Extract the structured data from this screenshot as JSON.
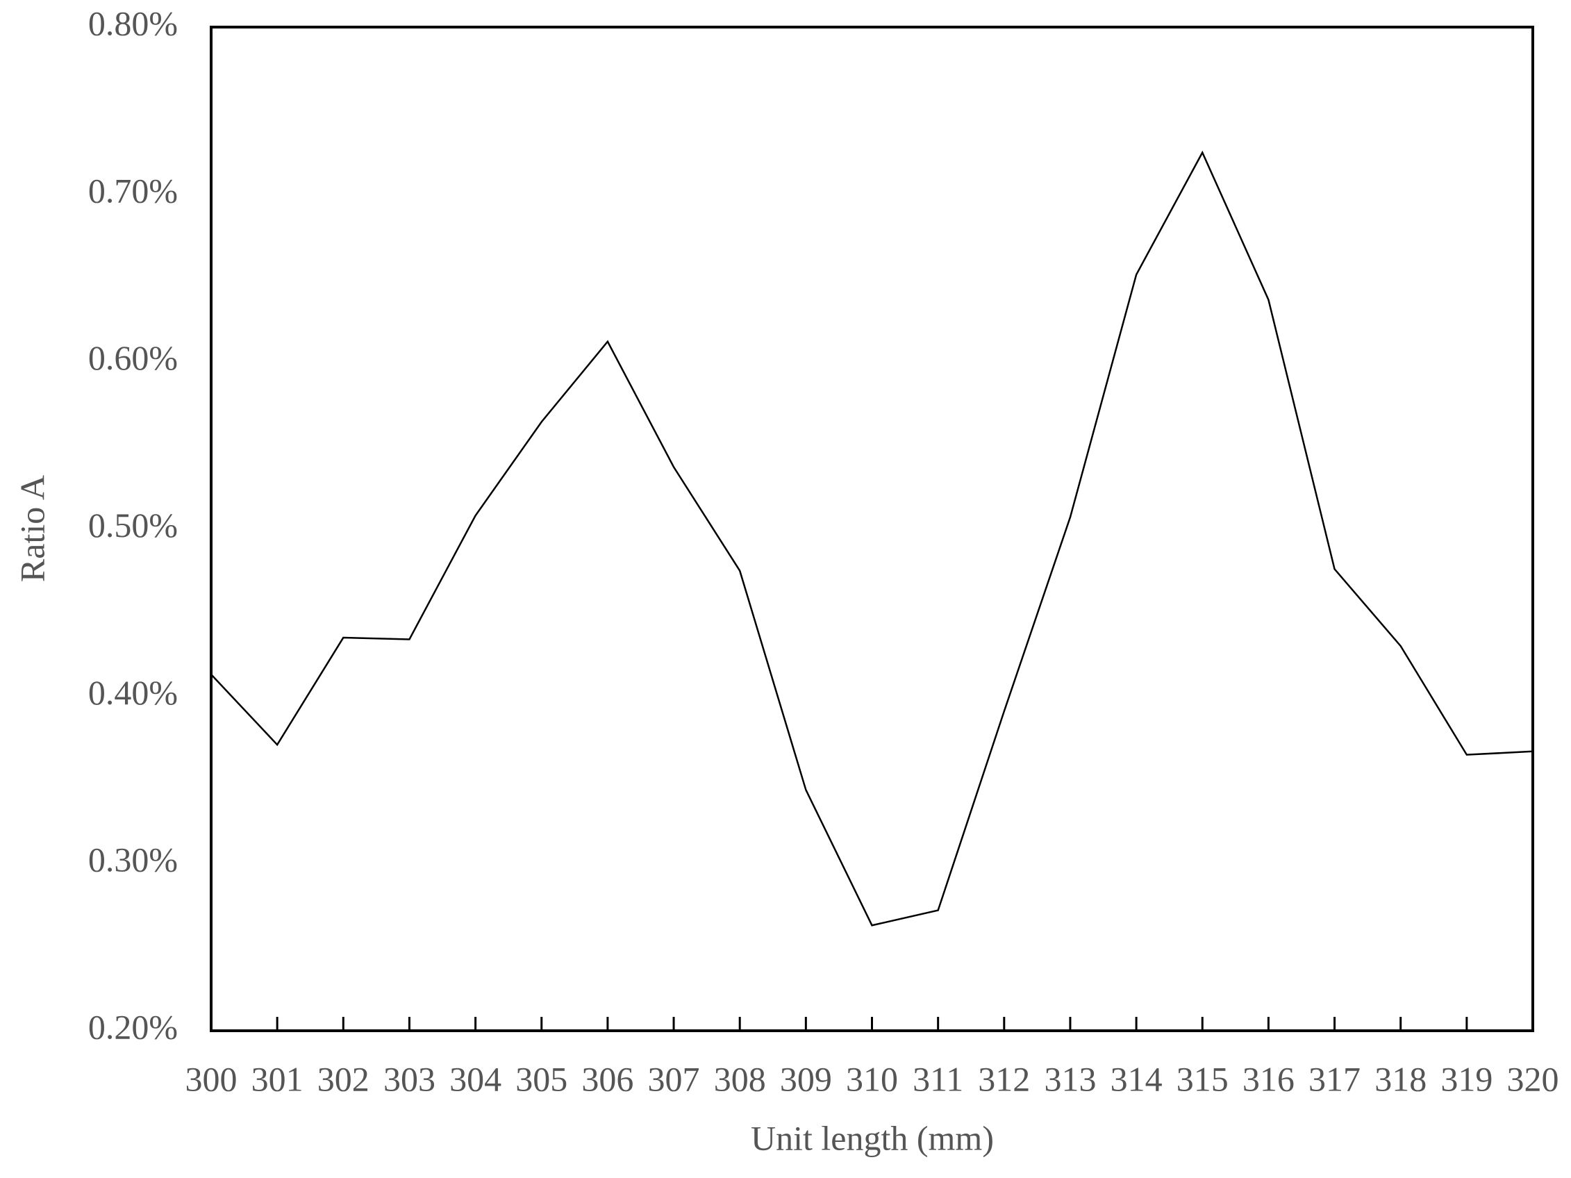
{
  "chart_data": {
    "type": "line",
    "x_label": "Unit length (mm)",
    "y_label": "Ratio A",
    "x": [
      300,
      301,
      302,
      303,
      304,
      305,
      306,
      307,
      308,
      309,
      310,
      311,
      312,
      313,
      314,
      315,
      316,
      317,
      318,
      319,
      320
    ],
    "series": [
      {
        "color": "#000000",
        "values": [
          0.413,
          0.371,
          0.435,
          0.434,
          0.508,
          0.564,
          0.612,
          0.537,
          0.475,
          0.344,
          0.263,
          0.272,
          0.391,
          0.507,
          0.652,
          0.725,
          0.637,
          0.476,
          0.43,
          0.365,
          0.367
        ]
      }
    ],
    "xlim": [
      300,
      320
    ],
    "xticks": [
      300,
      301,
      302,
      303,
      304,
      305,
      306,
      307,
      308,
      309,
      310,
      311,
      312,
      313,
      314,
      315,
      316,
      317,
      318,
      319,
      320
    ],
    "ylim": [
      0.2,
      0.8
    ],
    "yticks": [
      {
        "value": 0.2,
        "label": "0.20%"
      },
      {
        "value": 0.3,
        "label": "0.30%"
      },
      {
        "value": 0.4,
        "label": "0.40%"
      },
      {
        "value": 0.5,
        "label": "0.50%"
      },
      {
        "value": 0.6,
        "label": "0.60%"
      },
      {
        "value": 0.7,
        "label": "0.70%"
      },
      {
        "value": 0.8,
        "label": "0.80%"
      }
    ],
    "grid": false
  }
}
